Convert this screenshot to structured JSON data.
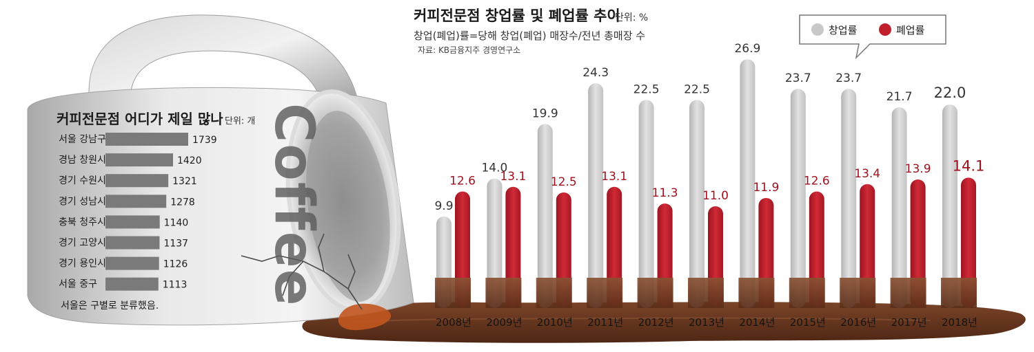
{
  "mug_text": "Coffee",
  "colors": {
    "founding": "#cfcfcf",
    "closure": "#c11f2b",
    "closure_label": "#a0111d",
    "mug_bar": "#7a7a7a",
    "coffee": "#6b3a24"
  },
  "chart_data": [
    {
      "type": "bar",
      "orientation": "horizontal",
      "title": "커피전문점 어디가 제일 많나",
      "unit": "단위: 개",
      "categories": [
        "서울 강남구",
        "경남 창원시",
        "경기 수원시",
        "경기 성남시",
        "충북 청주시",
        "경기 고양시",
        "경기 용인시",
        "서울 중구"
      ],
      "values": [
        1739,
        1420,
        1321,
        1278,
        1140,
        1137,
        1126,
        1113
      ],
      "note": "서울은 구별로 분류했음."
    },
    {
      "type": "bar",
      "title": "커피전문점 창업률 및 폐업률 추이",
      "unit": "단위: %",
      "subtitle": "창업(폐업)률=당해 창업(폐업) 매장수/전년 총매장 수",
      "source": "자료: KB금융지주 경영연구소",
      "categories": [
        "2008년",
        "2009년",
        "2010년",
        "2011년",
        "2012년",
        "2013년",
        "2014년",
        "2015년",
        "2016년",
        "2017년",
        "2018년"
      ],
      "series": [
        {
          "name": "창업률",
          "values": [
            9.9,
            14.0,
            19.9,
            24.3,
            22.5,
            22.5,
            26.9,
            23.7,
            23.7,
            21.7,
            22.0
          ]
        },
        {
          "name": "폐업률",
          "values": [
            12.6,
            13.1,
            12.5,
            13.1,
            11.3,
            11.0,
            11.9,
            12.6,
            13.4,
            13.9,
            14.1
          ]
        }
      ],
      "labels": {
        "창업률": [
          "9.9",
          "14.0",
          "19.9",
          "24.3",
          "22.5",
          "22.5",
          "26.9",
          "23.7",
          "23.7",
          "21.7",
          "22.0"
        ],
        "폐업률": [
          "12.6",
          "13.1",
          "12.5",
          "13.1",
          "11.3",
          "11.0",
          "11.9",
          "12.6",
          "13.4",
          "13.9",
          "14.1"
        ]
      },
      "highlight_category": "2018년",
      "legend_position": "top-right",
      "grid": false
    }
  ]
}
